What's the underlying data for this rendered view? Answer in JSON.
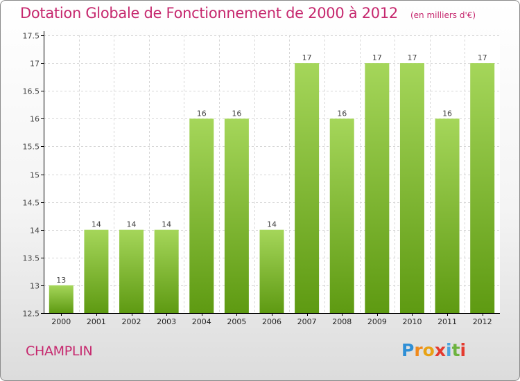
{
  "header": {
    "title": "Dotation Globale de Fonctionnement de 2000 à 2012",
    "unit": "(en milliers d'€)"
  },
  "commune": "CHAMPLIN",
  "brand": {
    "letters": [
      "P",
      "r",
      "o",
      "x",
      "i",
      "t",
      "i"
    ],
    "colors": [
      "#2f8fd6",
      "#f08a1c",
      "#e8a215",
      "#e43a2f",
      "#4aa5e0",
      "#6db33f",
      "#e43a2f"
    ]
  },
  "colors": {
    "bar_light": "#a5d65a",
    "bar_dark": "#5e9a12",
    "grid": "#d6d6d6",
    "axis": "#000000",
    "title": "#c6286e"
  },
  "chart_data": {
    "type": "bar",
    "categories": [
      "2000",
      "2001",
      "2002",
      "2003",
      "2004",
      "2005",
      "2006",
      "2007",
      "2008",
      "2009",
      "2010",
      "2011",
      "2012"
    ],
    "values": [
      13,
      14,
      14,
      14,
      16,
      16,
      14,
      17,
      16,
      17,
      17,
      16,
      17
    ],
    "data_labels": [
      "13",
      "14",
      "14",
      "14",
      "16",
      "16",
      "14",
      "17",
      "16",
      "17",
      "17",
      "16",
      "17"
    ],
    "y_ticks": [
      12.5,
      13,
      13.5,
      14,
      14.5,
      15,
      15.5,
      16,
      16.5,
      17,
      17.5
    ],
    "y_tick_labels": [
      "12.5",
      "13",
      "13.5",
      "14",
      "14.5",
      "15",
      "15.5",
      "16",
      "16.5",
      "17",
      "17.5"
    ],
    "ylim": [
      12.5,
      17.5
    ],
    "grid": true,
    "legend": "none"
  }
}
